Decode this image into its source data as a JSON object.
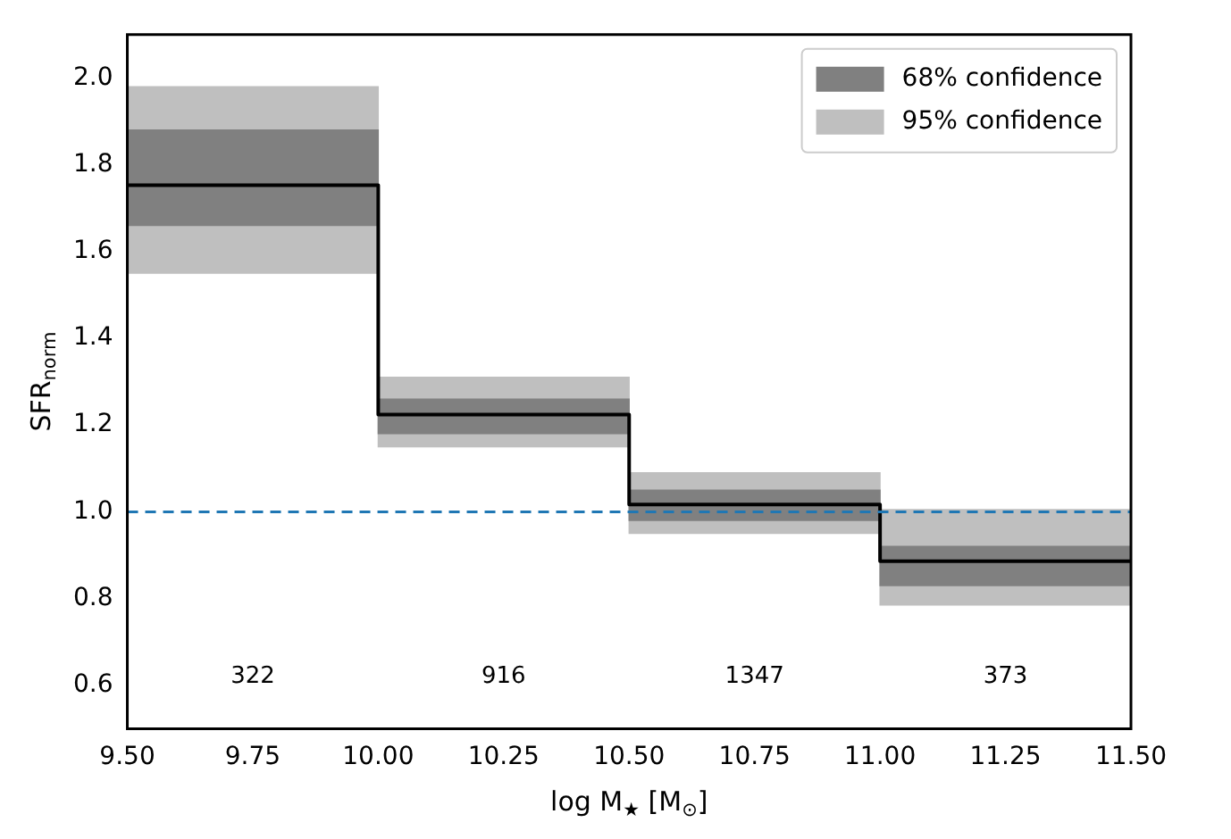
{
  "chart_data": {
    "type": "bar",
    "xlabel": "log M$_{★}$ [M$_{⊙}$]",
    "ylabel": "SFR$_{norm}$",
    "x": [
      9.75,
      10.25,
      10.75,
      11.25
    ],
    "series": [
      {
        "name": "95% confidence",
        "color": "#bfbfbf",
        "base": [
          1.55,
          1.15,
          0.95,
          0.785
        ],
        "values": [
          0.43,
          0.16,
          0.14,
          0.22
        ]
      },
      {
        "name": "68% confidence",
        "color": "#808080",
        "base": [
          1.66,
          1.18,
          0.98,
          0.83
        ],
        "values": [
          0.22,
          0.08,
          0.07,
          0.09
        ]
      },
      {
        "type": "step",
        "color": "#000000",
        "x": [
          9.5,
          10,
          10.5,
          11,
          11.5
        ],
        "values": [
          1.753,
          1.224,
          1.017,
          0.886,
          0.886
        ]
      }
    ],
    "xlim": [
      9.5,
      11.5
    ],
    "xticks": [
      {
        "value": 9.5,
        "label": "9.50"
      },
      {
        "value": 9.75,
        "label": "9.75"
      },
      {
        "value": 10,
        "label": "10.00"
      },
      {
        "value": 10.25,
        "label": "10.25"
      },
      {
        "value": 10.5,
        "label": "10.50"
      },
      {
        "value": 10.75,
        "label": "10.75"
      },
      {
        "value": 11,
        "label": "11.00"
      },
      {
        "value": 11.25,
        "label": "11.25"
      },
      {
        "value": 11.5,
        "label": "11.50"
      }
    ],
    "ylim": [
      0.5,
      2.1
    ],
    "yticks": [
      0.6,
      0.8,
      {
        "value": 1,
        "label": "1.0"
      },
      1.2,
      1.4,
      1.6,
      1.8,
      {
        "value": 2,
        "label": "2.0"
      }
    ],
    "ref_lines": [
      {
        "axis": "y",
        "value": 1,
        "color": "#1f77b4",
        "line_style": "dashed"
      }
    ],
    "annotations": [
      "322",
      "916",
      "1347",
      "373"
    ],
    "legend": "top right",
    "grid": false
  }
}
